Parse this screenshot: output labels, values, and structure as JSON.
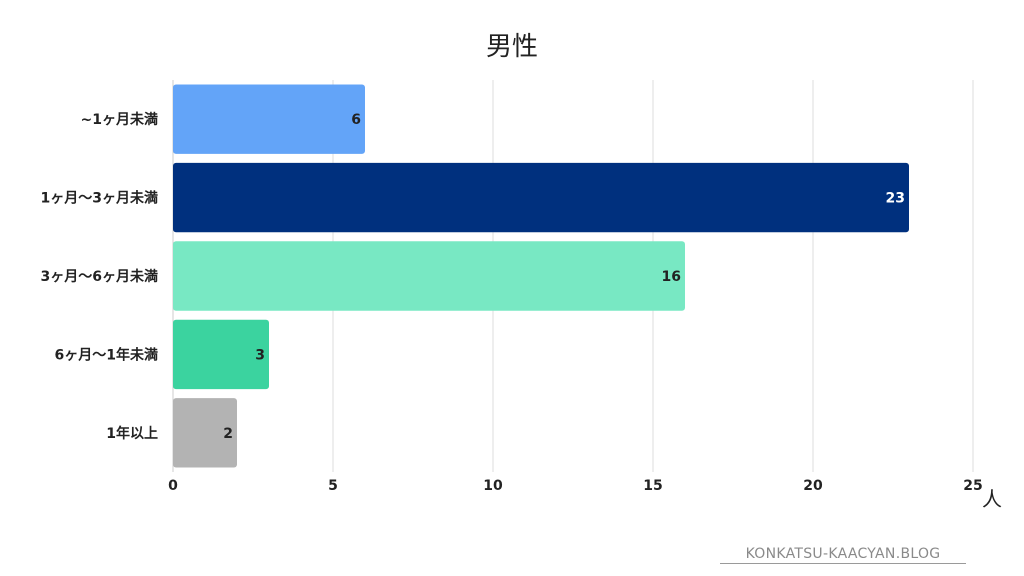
{
  "chart_data": {
    "type": "bar",
    "orientation": "horizontal",
    "title": "男性",
    "unit": "人",
    "categories": [
      "~1ヶ月未満",
      "1ヶ月～3ヶ月未満",
      "3ヶ月～6ヶ月未満",
      "6ヶ月～1年未満",
      "1年以上"
    ],
    "values": [
      6,
      23,
      16,
      3,
      2
    ],
    "bar_colors": [
      "#63a4f8",
      "#00307e",
      "#78e8c3",
      "#3bd39f",
      "#b3b3b3"
    ],
    "value_label_colors": [
      "#222222",
      "#ffffff",
      "#222222",
      "#222222",
      "#222222"
    ],
    "xlim": [
      0,
      25
    ],
    "xticks": [
      0,
      5,
      10,
      15,
      20,
      25
    ],
    "grid": true
  },
  "watermark": "KONKATSU-KAACYAN.BLOG"
}
